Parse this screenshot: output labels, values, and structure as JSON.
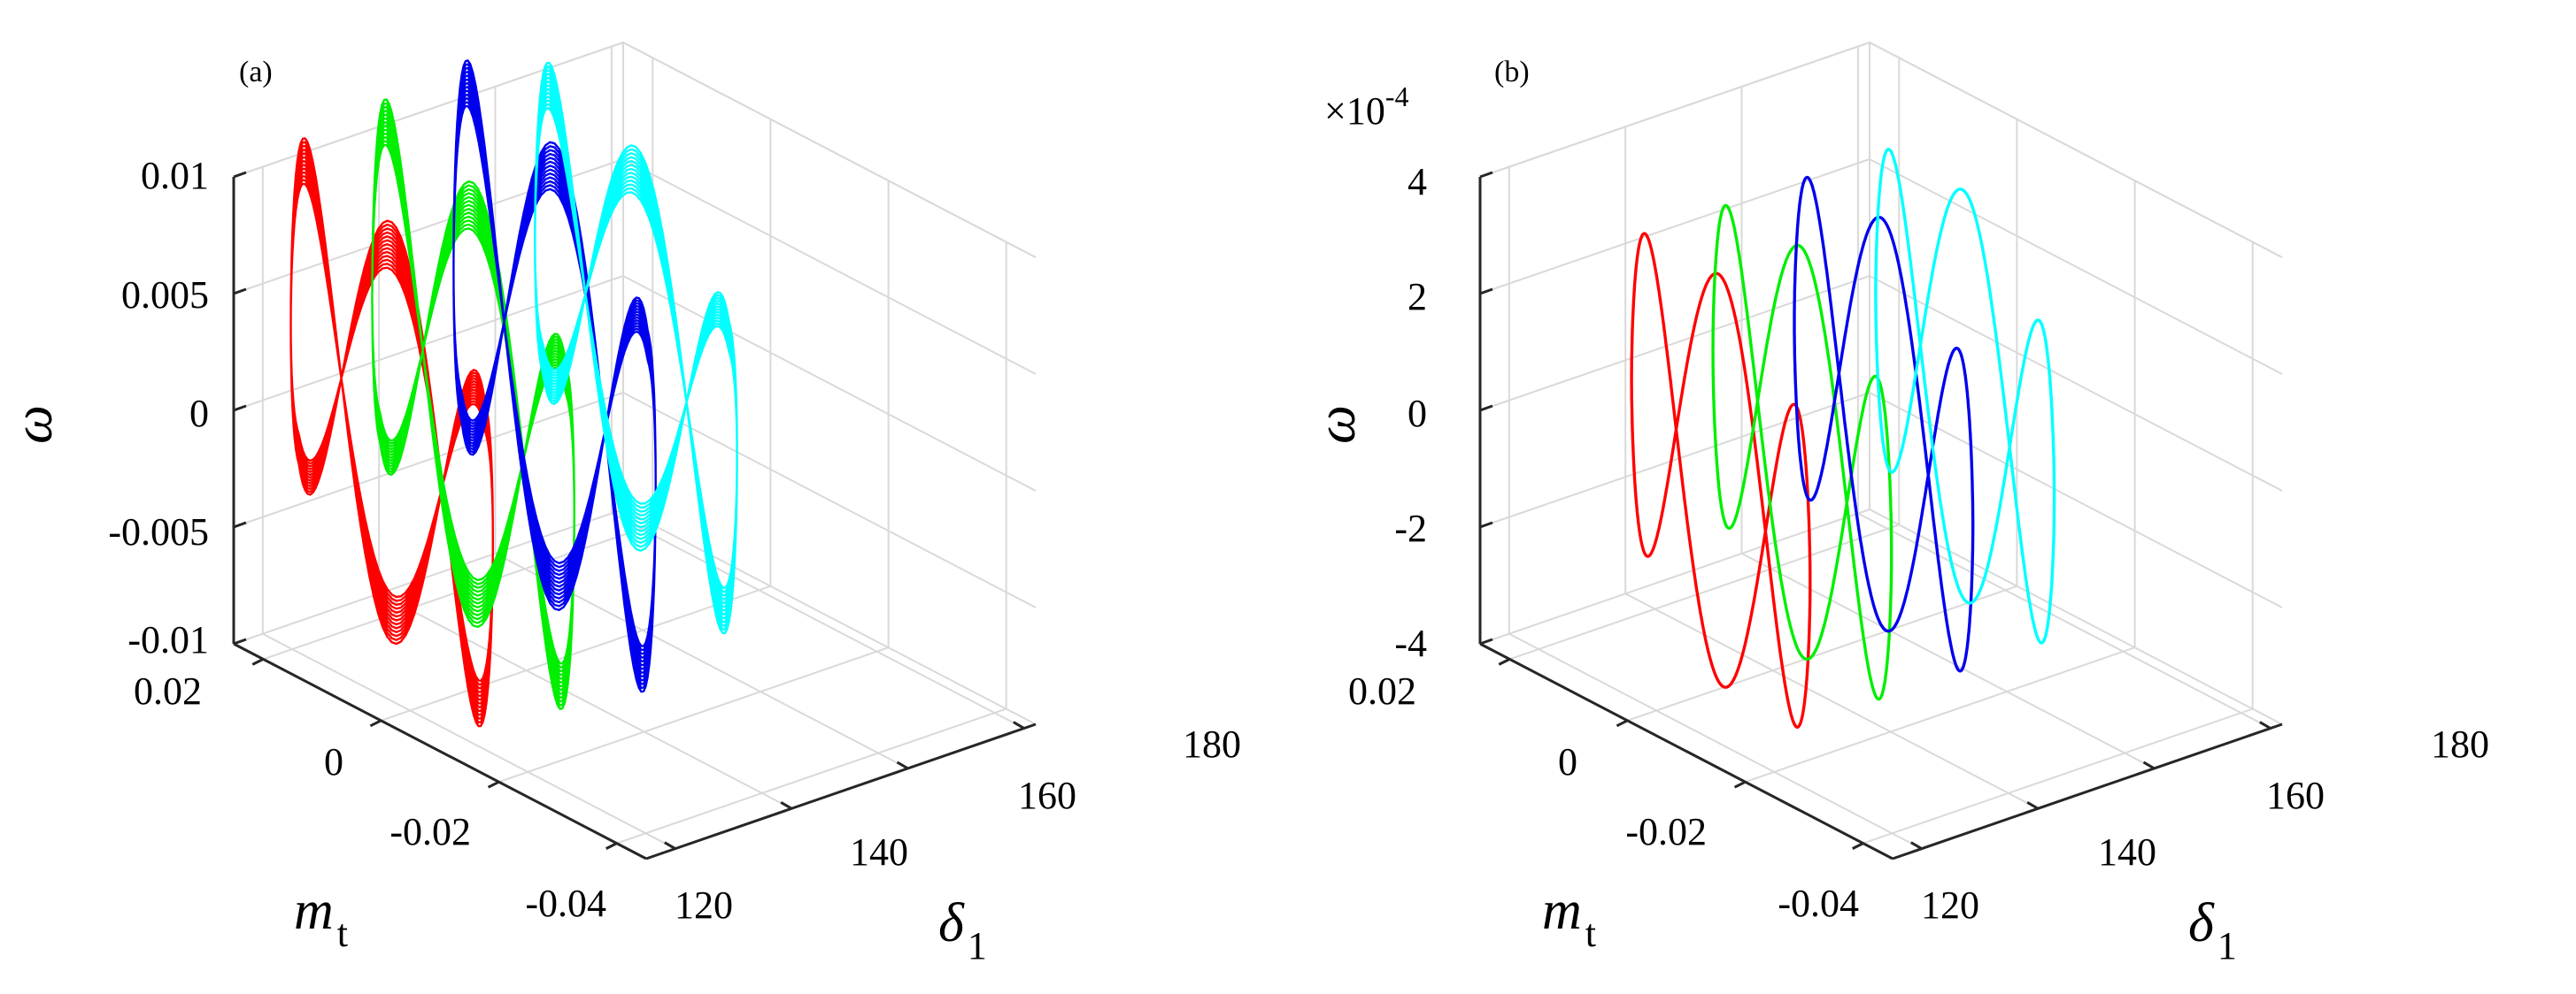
{
  "chart_data": [
    {
      "type": "line",
      "subtype": "3d",
      "panel_label": "(a)",
      "xlabel": "δ",
      "xlabel_sub": "1",
      "ylabel": "m",
      "ylabel_sub": "t",
      "zlabel": "ω",
      "x_ticks": [
        "120",
        "140",
        "160",
        "180"
      ],
      "y_ticks": [
        "0.02",
        "0",
        "-0.02",
        "-0.04"
      ],
      "z_ticks": [
        "0.01",
        "0.005",
        "0",
        "-0.005",
        "-0.01"
      ],
      "xlim": [
        115,
        182
      ],
      "ylim": [
        -0.045,
        0.025
      ],
      "zlim": [
        -0.01,
        0.01
      ],
      "grid": true,
      "series": [
        {
          "name": "red",
          "color": "#ff0000",
          "delta_center": 127,
          "delta_amplitude": 11,
          "mt_center": 0.01,
          "mt_amplitude": 0.028,
          "omega_amplitude": 0.0082,
          "omega_jitter": 0.0021,
          "cycles": 30
        },
        {
          "name": "green",
          "color": "#00ee00",
          "delta_center": 141,
          "delta_amplitude": 11,
          "mt_center": 0.01,
          "mt_amplitude": 0.028,
          "omega_amplitude": 0.0087,
          "omega_jitter": 0.0021,
          "cycles": 30
        },
        {
          "name": "blue",
          "color": "#0000ee",
          "delta_center": 155,
          "delta_amplitude": 11,
          "mt_center": 0.01,
          "mt_amplitude": 0.028,
          "omega_amplitude": 0.0092,
          "omega_jitter": 0.0021,
          "cycles": 30
        },
        {
          "name": "cyan",
          "color": "#00ffff",
          "delta_center": 169,
          "delta_amplitude": 11,
          "mt_center": 0.01,
          "mt_amplitude": 0.028,
          "omega_amplitude": 0.0078,
          "omega_jitter": 0.0021,
          "cycles": 30
        }
      ]
    },
    {
      "type": "line",
      "subtype": "3d",
      "panel_label": "(b)",
      "xlabel": "δ",
      "xlabel_sub": "1",
      "ylabel": "m",
      "ylabel_sub": "t",
      "zlabel": "ω",
      "z_multiplier": "×10",
      "z_multiplier_exponent": "-4",
      "x_ticks": [
        "120",
        "140",
        "160",
        "180"
      ],
      "y_ticks": [
        "0.02",
        "0",
        "-0.02",
        "-0.04"
      ],
      "z_ticks": [
        "4",
        "2",
        "0",
        "-2",
        "-4"
      ],
      "xlim": [
        115,
        182
      ],
      "ylim": [
        -0.045,
        0.025
      ],
      "zlim": [
        -4,
        4
      ],
      "grid": true,
      "series": [
        {
          "name": "red",
          "color": "#ff0000",
          "delta_center": 126,
          "delta_amplitude": 11,
          "mt_center": -0.005,
          "mt_amplitude": 0.026,
          "omega_amplitude": 3.5
        },
        {
          "name": "green",
          "color": "#00ee00",
          "delta_center": 140,
          "delta_amplitude": 11,
          "mt_center": -0.005,
          "mt_amplitude": 0.026,
          "omega_amplitude": 3.5
        },
        {
          "name": "blue",
          "color": "#0000ee",
          "delta_center": 154,
          "delta_amplitude": 11,
          "mt_center": -0.005,
          "mt_amplitude": 0.026,
          "omega_amplitude": 3.5
        },
        {
          "name": "cyan",
          "color": "#00ffff",
          "delta_center": 168,
          "delta_amplitude": 11,
          "mt_center": -0.005,
          "mt_amplitude": 0.026,
          "omega_amplitude": 3.5
        }
      ]
    }
  ]
}
